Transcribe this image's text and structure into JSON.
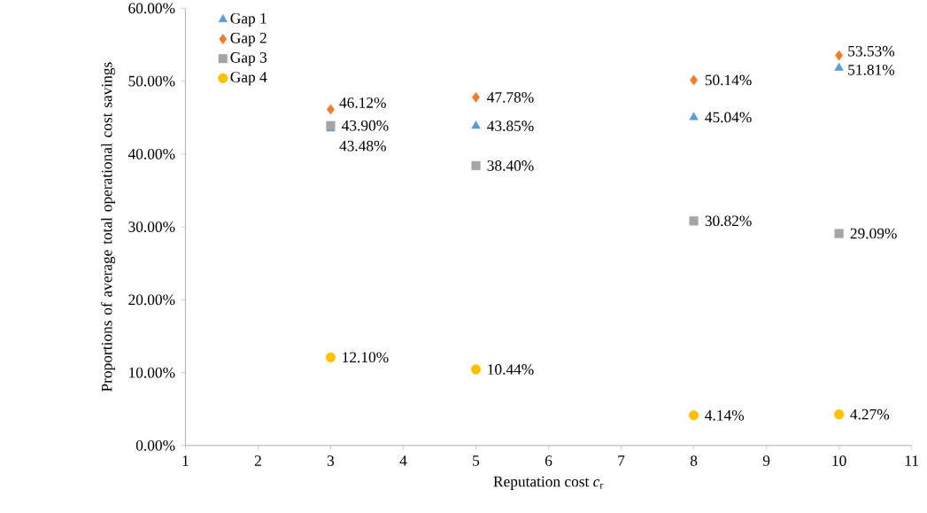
{
  "chart_data": {
    "type": "scatter",
    "xlabel": "Reputation cost  *c*$_{r}$",
    "ylabel": "Proportions of average total operational cost savings",
    "x": [
      3,
      5,
      8,
      10
    ],
    "series": [
      {
        "name": "Gap 1",
        "color": "#5b9bd5",
        "marker": "triangle",
        "values": [
          43.48,
          43.85,
          45.04,
          51.81
        ],
        "value_labels": [
          "43.48%",
          "43.85%",
          "45.04%",
          "51.81%"
        ]
      },
      {
        "name": "Gap 2",
        "color": "#ed7d31",
        "marker": "diamond",
        "values": [
          46.12,
          47.78,
          50.14,
          53.53
        ],
        "value_labels": [
          "46.12%",
          "47.78%",
          "50.14%",
          "53.53%"
        ]
      },
      {
        "name": "Gap 3",
        "color": "#a5a5a5",
        "marker": "square",
        "values": [
          43.9,
          38.4,
          30.82,
          29.09
        ],
        "value_labels": [
          "43.90%",
          "38.40%",
          "30.82%",
          "29.09%"
        ]
      },
      {
        "name": "Gap 4",
        "color": "#ffc000",
        "marker": "circle",
        "values": [
          12.1,
          10.44,
          4.14,
          4.27
        ],
        "value_labels": [
          "12.10%",
          "10.44%",
          "4.14%",
          "4.27%"
        ]
      }
    ],
    "xlim": [
      1,
      11
    ],
    "xticks": [
      1,
      2,
      3,
      4,
      5,
      6,
      7,
      8,
      9,
      10,
      11
    ],
    "ylim": [
      0,
      60
    ],
    "yticks": [
      {
        "value": 0,
        "label": "0.00%"
      },
      {
        "value": 10,
        "label": "10.00%"
      },
      {
        "value": 20,
        "label": "20.00%"
      },
      {
        "value": 30,
        "label": "30.00%"
      },
      {
        "value": 40,
        "label": "40.00%"
      },
      {
        "value": 50,
        "label": "50.00%"
      },
      {
        "value": 60,
        "label": "60.00%"
      }
    ],
    "grid": false,
    "legend": "top left"
  }
}
